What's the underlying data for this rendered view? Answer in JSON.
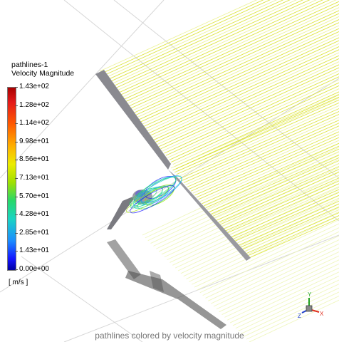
{
  "legend": {
    "title_line1": "pathlines-1",
    "title_line2": "Velocity Magnitude",
    "unit": "[ m/s ]",
    "ticks": [
      "1.43e+02",
      "1.28e+02",
      "1.14e+02",
      "9.98e+01",
      "8.56e+01",
      "7.13e+01",
      "5.70e+01",
      "4.28e+01",
      "2.85e+01",
      "1.43e+01",
      "0.00e+00"
    ],
    "colormap": [
      "#a80000",
      "#e41a1a",
      "#ff5a00",
      "#ffb000",
      "#ecec00",
      "#9fe000",
      "#27d86a",
      "#1ad4c4",
      "#1c8cff",
      "#1414ff",
      "#0000a0"
    ]
  },
  "triad": {
    "x_label": "X",
    "y_label": "Y",
    "z_label": "Z",
    "x_color": "#e03020",
    "y_color": "#20a020",
    "z_color": "#2040d0"
  },
  "caption": "pathlines colored by velocity magnitude",
  "colors": {
    "stream_main": "#d8e020",
    "stream_light": "#eaf08a",
    "stream_reflection": "#eef6b8",
    "airfoil": "#8a8a90",
    "shadow": "#5a5a5a",
    "grid": "#d6d6d6"
  }
}
